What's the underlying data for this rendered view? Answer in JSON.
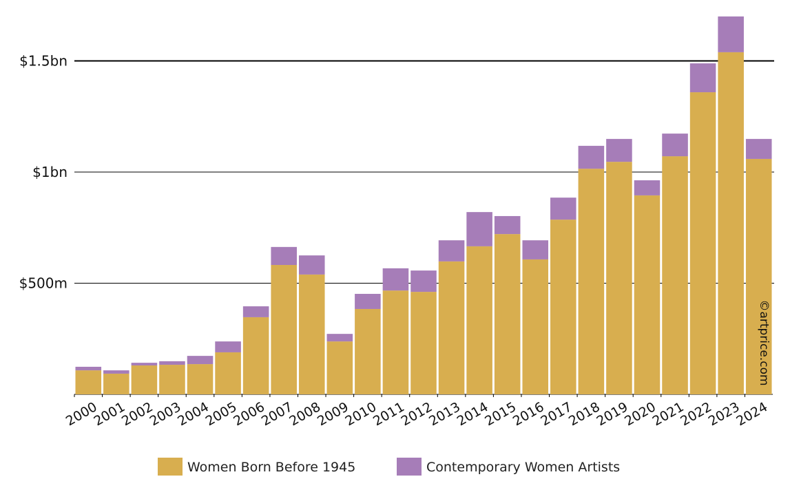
{
  "chart_data": {
    "type": "bar",
    "stacked": true,
    "title": "",
    "xlabel": "",
    "ylabel": "",
    "ylim": [
      0,
      1700
    ],
    "y_unit": "USD millions",
    "y_ticks": [
      {
        "value": 500,
        "label": "$500m"
      },
      {
        "value": 1000,
        "label": "$1bn"
      },
      {
        "value": 1500,
        "label": "$1.5bn"
      }
    ],
    "categories": [
      "2000",
      "2001",
      "2002",
      "2003",
      "2004",
      "2005",
      "2006",
      "2007",
      "2008",
      "2009",
      "2010",
      "2011",
      "2012",
      "2013",
      "2014",
      "2015",
      "2016",
      "2017",
      "2018",
      "2019",
      "2020",
      "2021",
      "2022",
      "2023",
      "2024"
    ],
    "series": [
      {
        "name": "Women Born Before 1945",
        "color": "#d8ae4f",
        "values": [
          108,
          93,
          130,
          133,
          136,
          189,
          347,
          582,
          539,
          238,
          384,
          467,
          461,
          598,
          666,
          721,
          607,
          786,
          1015,
          1046,
          895,
          1071,
          1359,
          1539,
          1059
        ]
      },
      {
        "name": "Contemporary Women Artists",
        "color": "#a67db8",
        "values": [
          16,
          15,
          12,
          16,
          37,
          49,
          49,
          81,
          86,
          34,
          68,
          100,
          96,
          95,
          154,
          81,
          86,
          99,
          103,
          103,
          68,
          102,
          130,
          161,
          90
        ]
      }
    ],
    "legend_position": "bottom",
    "grid": true,
    "watermark": "©artprice.com"
  }
}
